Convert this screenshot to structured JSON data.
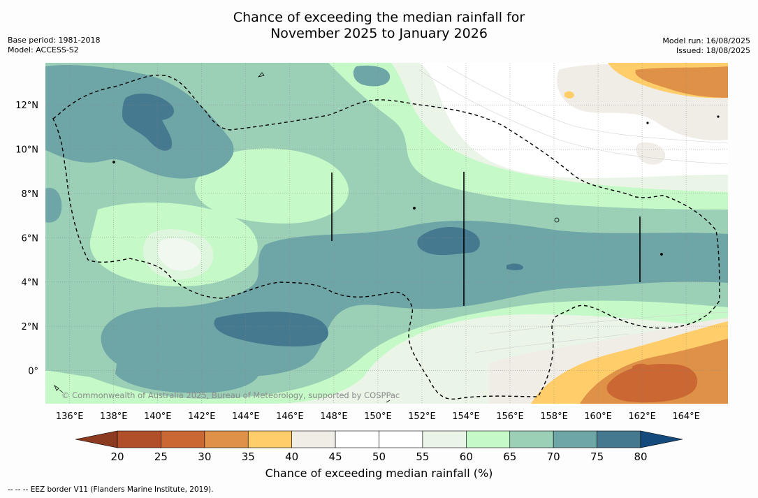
{
  "title": {
    "line1": "Chance of exceeding the median rainfall for",
    "line2": "November 2025 to January 2026"
  },
  "meta": {
    "base_period": "Base period: 1981-2018",
    "model": "Model: ACCESS-S2",
    "model_run": "Model run: 16/08/2025",
    "issued": "Issued: 18/08/2025"
  },
  "map": {
    "lon_ticks": [
      "136°E",
      "138°E",
      "140°E",
      "142°E",
      "144°E",
      "146°E",
      "148°E",
      "150°E",
      "152°E",
      "154°E",
      "156°E",
      "158°E",
      "160°E",
      "162°E",
      "164°E"
    ],
    "lon_values": [
      136,
      138,
      140,
      142,
      144,
      146,
      148,
      150,
      152,
      154,
      156,
      158,
      160,
      162,
      164
    ],
    "lat_ticks": [
      "12°N",
      "10°N",
      "8°N",
      "6°N",
      "4°N",
      "2°N",
      "0°"
    ],
    "lat_values": [
      12,
      10,
      8,
      6,
      4,
      2,
      0
    ],
    "lon_range": [
      134.9,
      165.9
    ],
    "lat_range": [
      -1.5,
      13.9
    ],
    "copyright": "© Commonwealth of Australia 2025, Bureau of Meteorology, supported by COSPPac"
  },
  "colorbar": {
    "tick_labels": [
      "20",
      "25",
      "30",
      "35",
      "40",
      "45",
      "50",
      "55",
      "60",
      "65",
      "70",
      "75",
      "80"
    ],
    "colors": [
      "#b14f2b",
      "#cb6732",
      "#df9147",
      "#ffce6a",
      "#f0ece6",
      "#ffffff",
      "#ffffff",
      "#eaf5e8",
      "#c5f9c7",
      "#9bd0b7",
      "#6ea5a6",
      "#45798f"
    ],
    "extend_low_color": "#8c3b20",
    "extend_high_color": "#144b7c",
    "label": "Chance of exceeding median rainfall (%)"
  },
  "footnote": "--  --  -- EEZ border V11 (Flanders Marine Institute, 2019)."
}
